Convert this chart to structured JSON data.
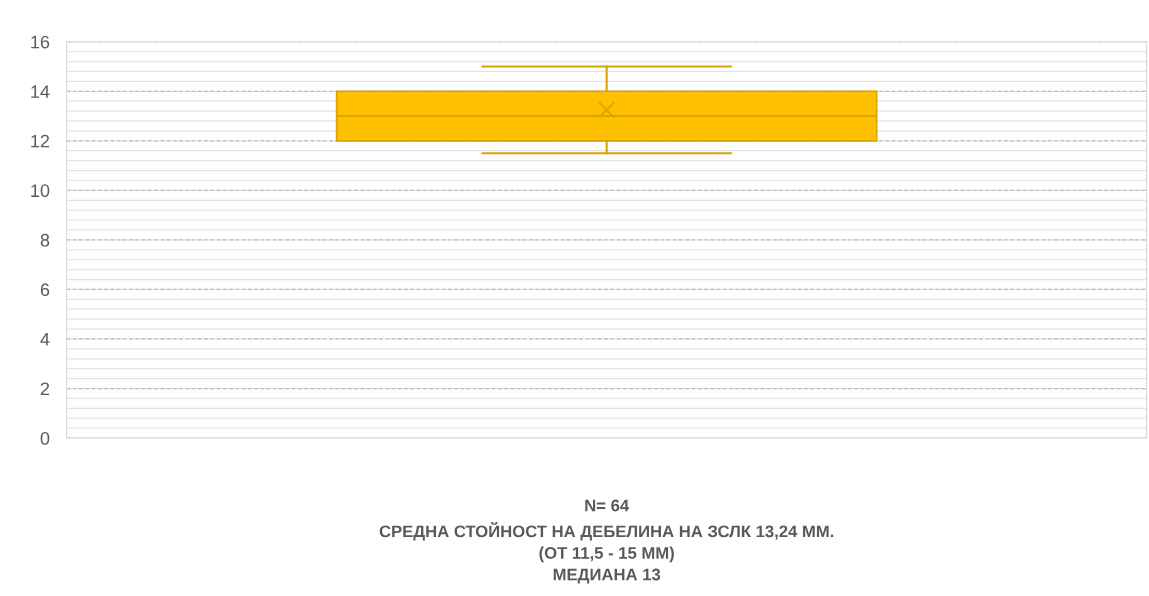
{
  "chart_data": {
    "type": "box",
    "categories": [
      null
    ],
    "xlabel": "N= 64\nСРЕДНА СТОЙНОСТ НА ДЕБЕЛИНА НА ЗСЛК 13,24 ММ.\n(ОТ 11,5 - 15 ММ)\nМЕДИАНА 13",
    "boxes": [
      {
        "low": 11.5,
        "q1": 12,
        "median": 13,
        "q3": 14,
        "high": 15,
        "mean": 13.24
      }
    ],
    "color": "#ffc000",
    "ylim": [
      0,
      16
    ],
    "yticks": [
      0,
      2,
      4,
      6,
      8,
      10,
      12,
      14,
      16
    ],
    "grid": "y",
    "legend": false
  }
}
